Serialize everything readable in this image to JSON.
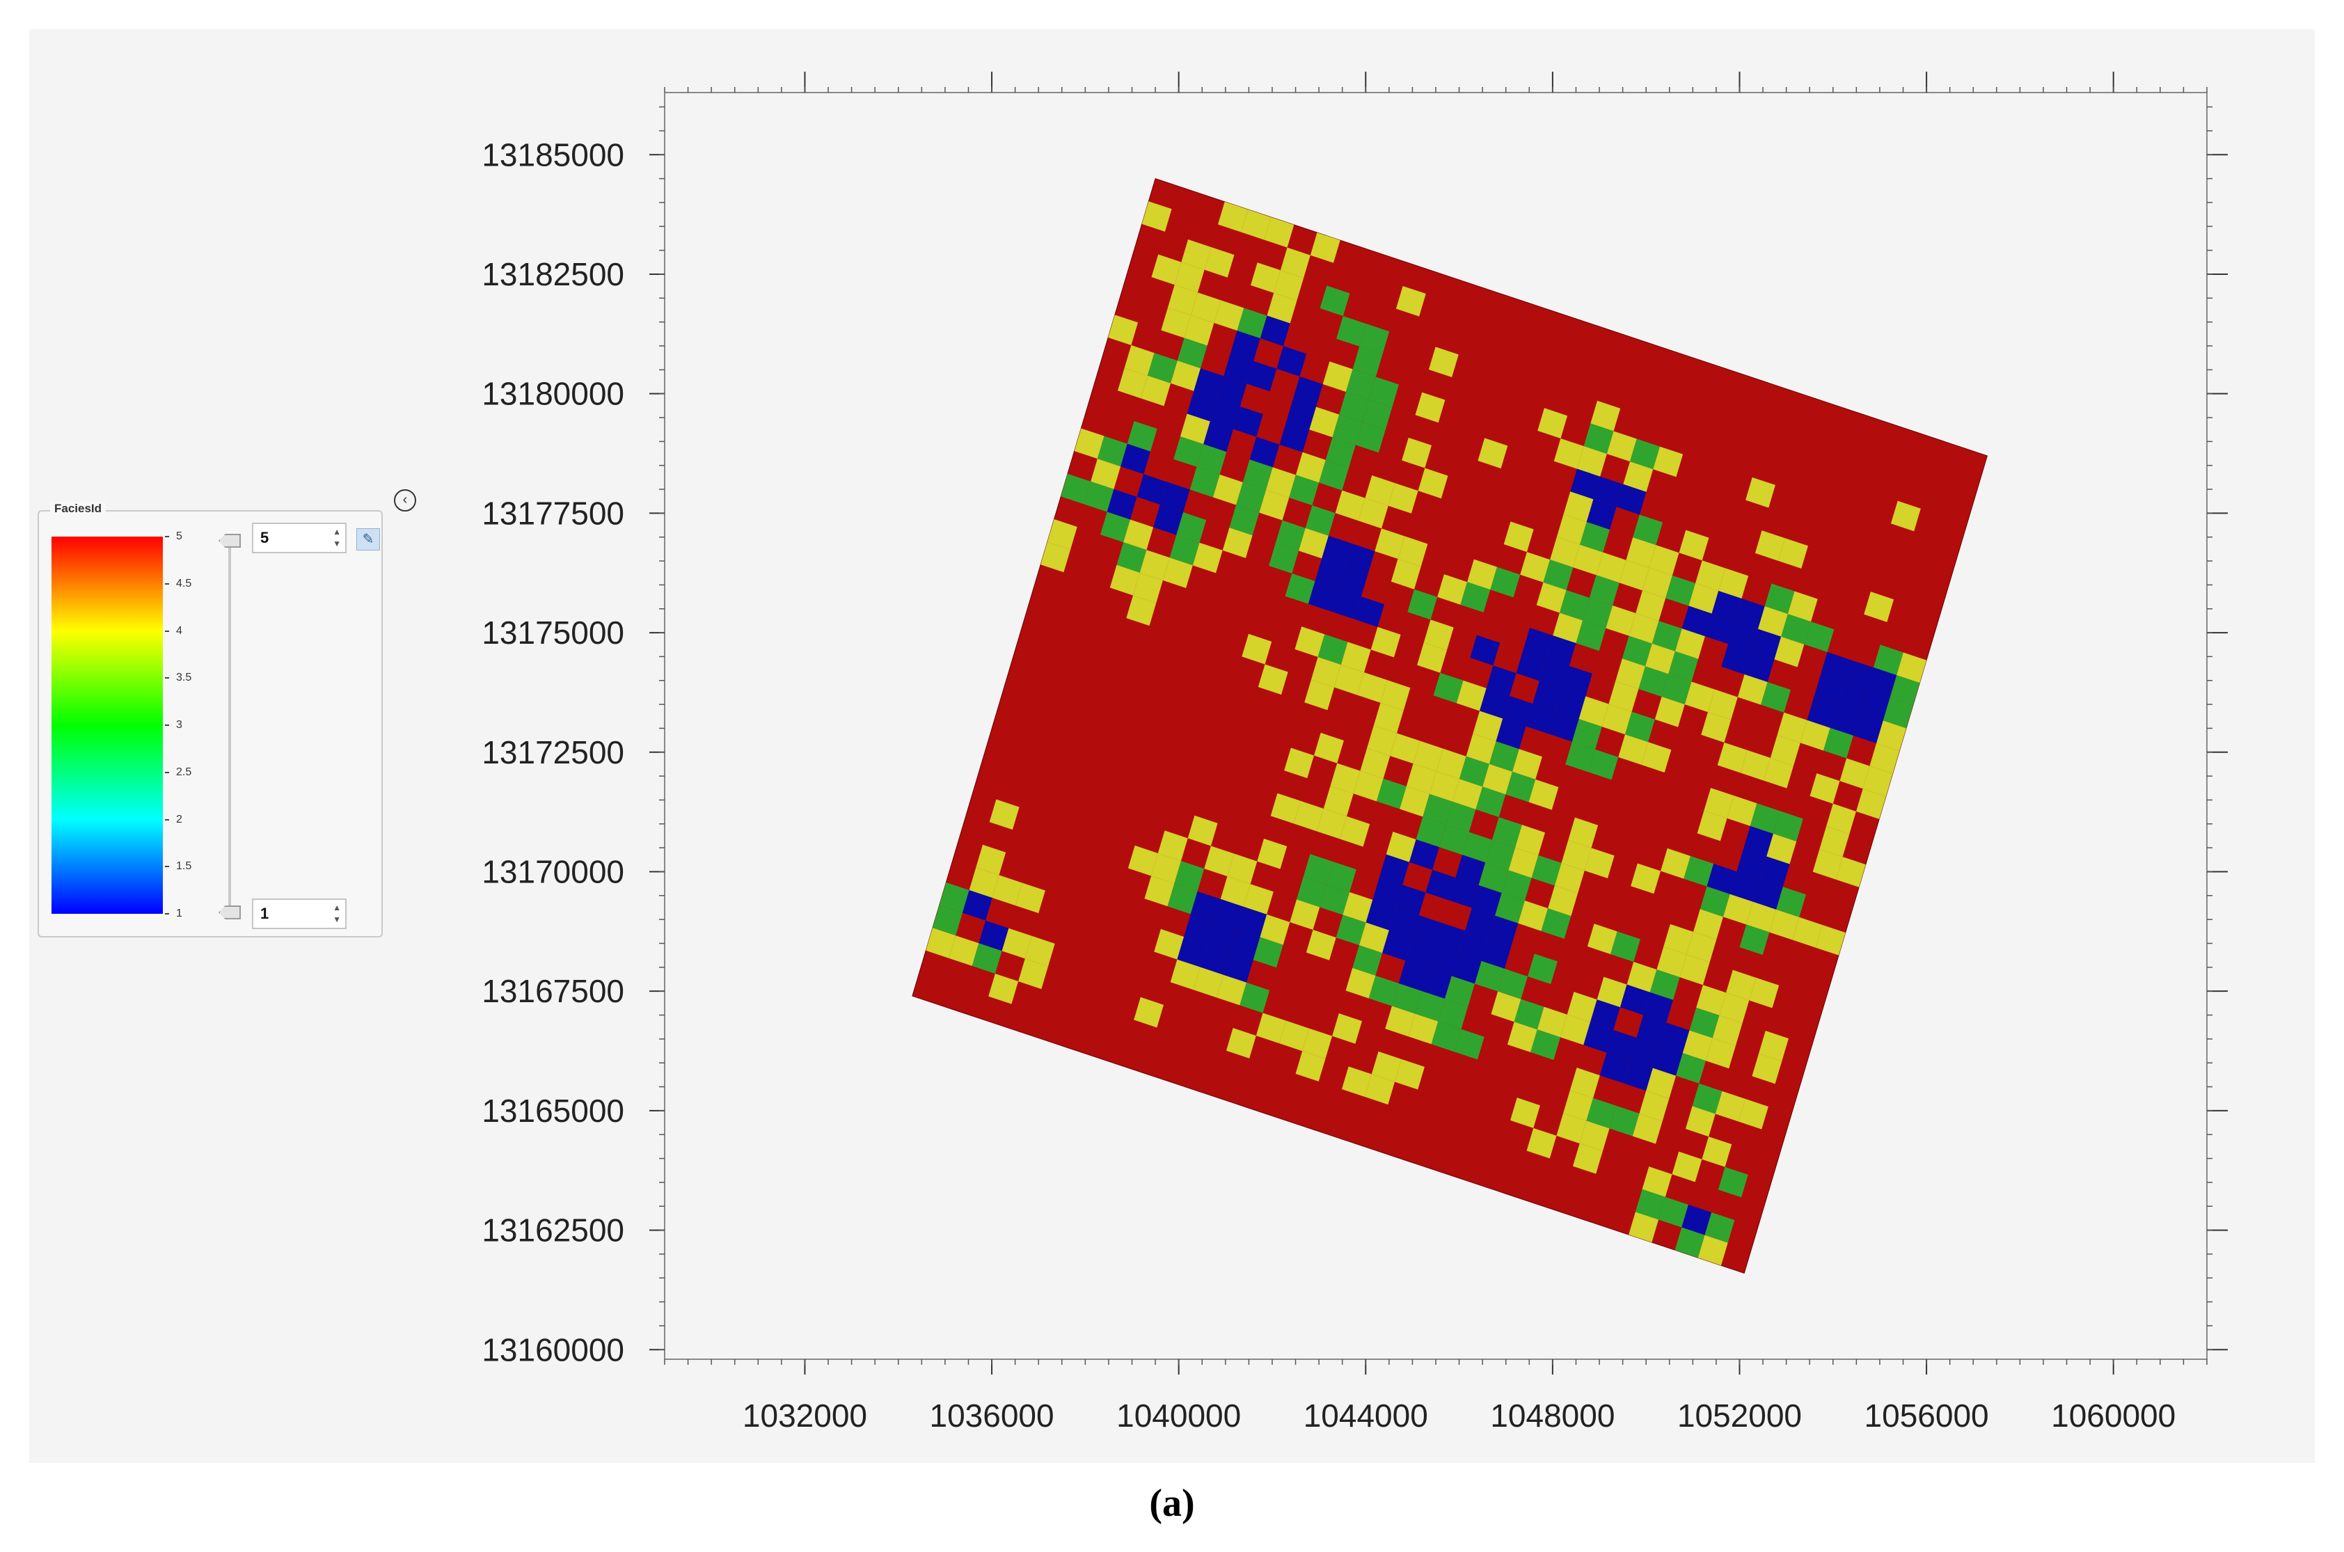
{
  "caption": "(a)",
  "legend": {
    "title": "FaciesId",
    "ticks": [
      "5",
      "4.5",
      "4",
      "3.5",
      "3",
      "2.5",
      "2",
      "1.5",
      "1"
    ],
    "max_value": "5",
    "min_value": "1",
    "colormap": [
      "#0000ff",
      "#00ffff",
      "#00ff00",
      "#ffff00",
      "#ff0000"
    ]
  },
  "icons": {
    "collapse": "chevron-left-circle-icon",
    "edit": "edit-icon"
  },
  "chart_data": {
    "type": "heatmap",
    "title": "",
    "xlabel": "",
    "ylabel": "",
    "xlim": [
      1029000,
      1062000
    ],
    "ylim": [
      13159800,
      13186300
    ],
    "x_ticks": [
      "1032000",
      "1036000",
      "1040000",
      "1044000",
      "1048000",
      "1052000",
      "1056000",
      "1060000"
    ],
    "y_ticks": [
      "13185000",
      "13182500",
      "13180000",
      "13177500",
      "13175000",
      "13172500",
      "13170000",
      "13167500",
      "13165000",
      "13162500",
      "13160000"
    ],
    "grid": false,
    "value_range": [
      1,
      5
    ],
    "dominant_value": 5,
    "grid_corners": [
      {
        "x": 1039500,
        "y": 13184500
      },
      {
        "x": 1057300,
        "y": 13178700
      },
      {
        "x": 1052100,
        "y": 13161600
      },
      {
        "x": 1034300,
        "y": 13167400
      }
    ],
    "facies_colors": {
      "1": "#0a0aa8",
      "3": "#2fa52f",
      "4": "#d4d42a",
      "5": "#b30c0c"
    }
  }
}
